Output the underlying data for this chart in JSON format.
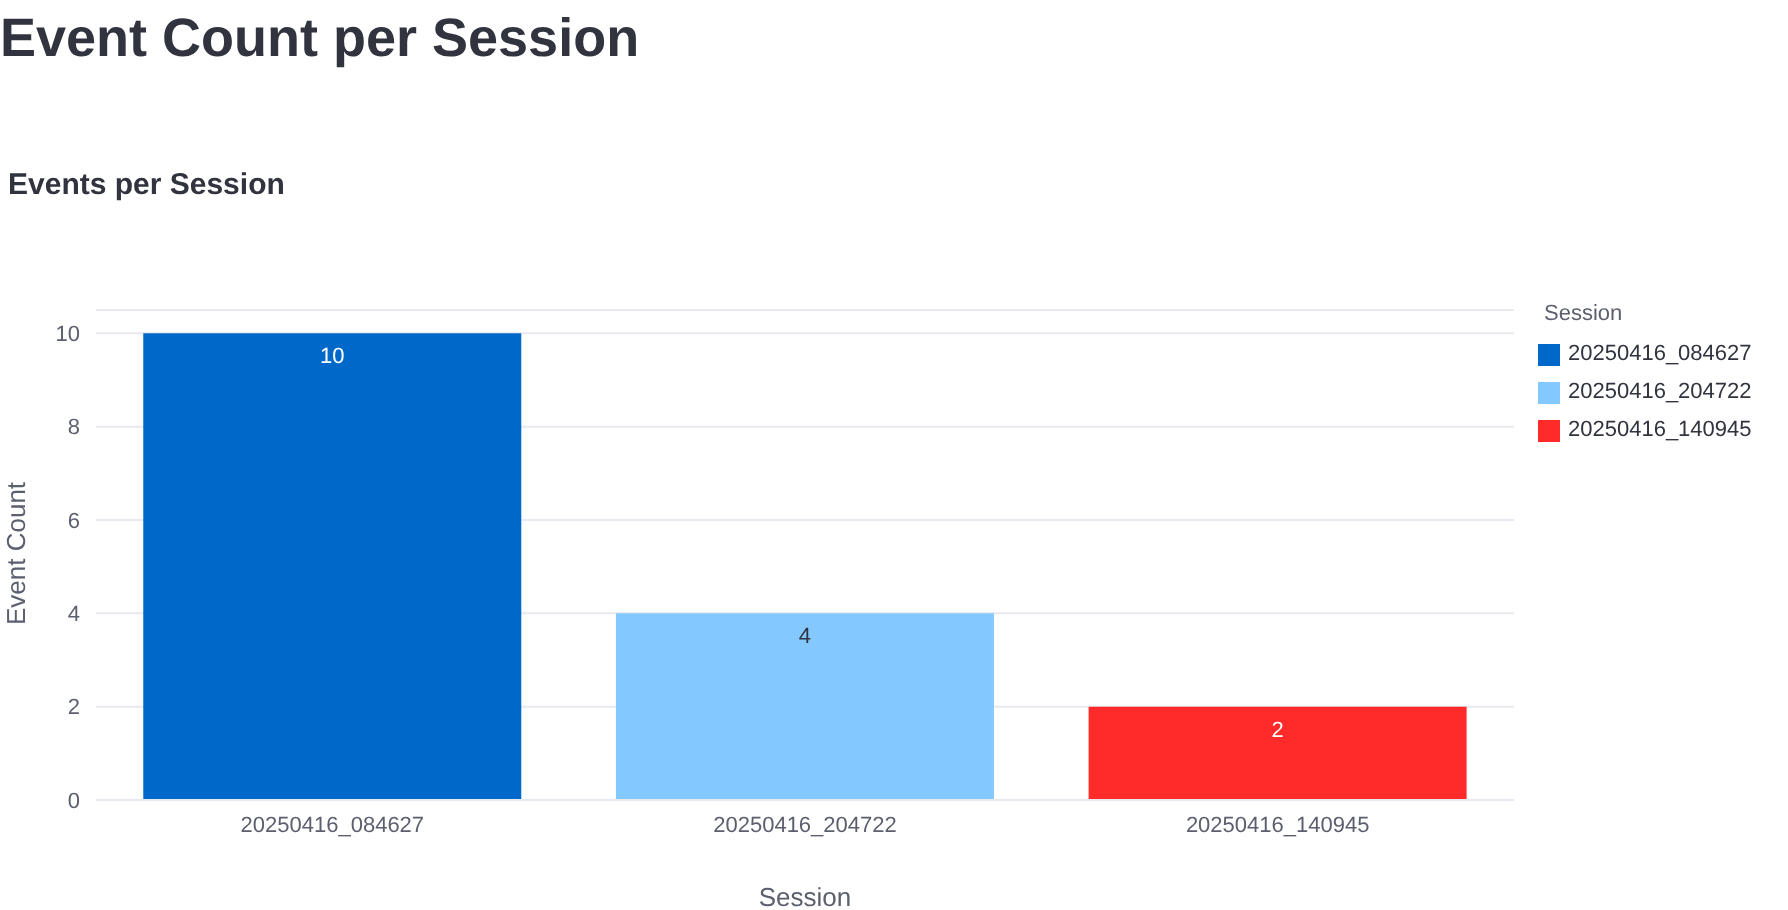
{
  "chart_data": {
    "type": "bar",
    "title": "Event Count per Session",
    "subtitle": "Events per Session",
    "xlabel": "Session",
    "ylabel": "Event Count",
    "legend_title": "Session",
    "categories": [
      "20250416_084627",
      "20250416_204722",
      "20250416_140945"
    ],
    "series": [
      {
        "name": "20250416_084627",
        "color": "#0068c9",
        "values": [
          10,
          null,
          null
        ]
      },
      {
        "name": "20250416_204722",
        "color": "#83c9ff",
        "values": [
          null,
          4,
          null
        ]
      },
      {
        "name": "20250416_140945",
        "color": "#ff2b2b",
        "values": [
          null,
          null,
          2
        ]
      }
    ],
    "stacked": true,
    "ylim": [
      0,
      10.5
    ],
    "yticks": [
      0,
      2,
      4,
      6,
      8,
      10
    ],
    "grid": "y",
    "legend": "top right",
    "data_labels": true
  }
}
